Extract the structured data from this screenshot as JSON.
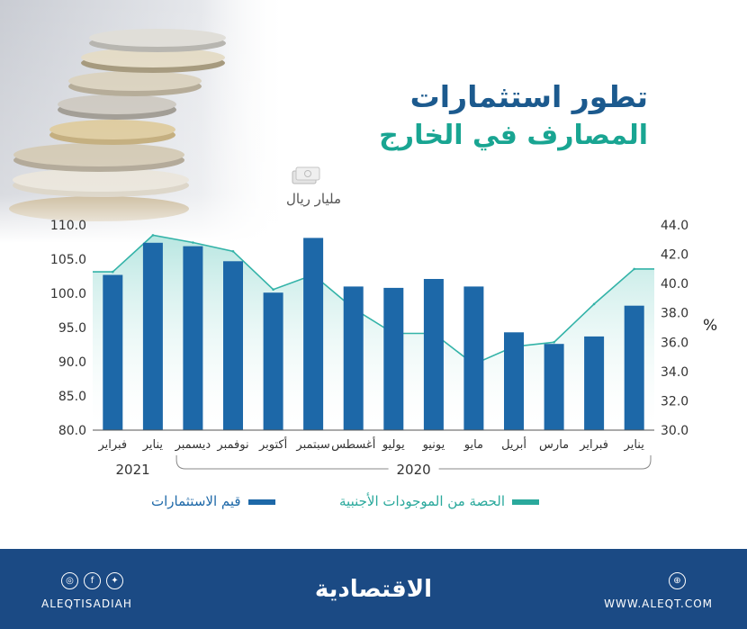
{
  "title_line1": "تطور استثمارات",
  "title_line2": "المصارف في الخارج",
  "unit_label": "مليار ريال",
  "right_axis_unit": "%",
  "chart_data": {
    "type": "bar",
    "categories": [
      "يناير",
      "فبراير",
      "مارس",
      "أبريل",
      "مايو",
      "يونيو",
      "يوليو",
      "أغسطس",
      "سبتمبر",
      "أكتوبر",
      "نوفمبر",
      "ديسمبر",
      "يناير",
      "فبراير"
    ],
    "series": [
      {
        "name": "قيم الاستثمارات",
        "type": "bar",
        "axis": "left",
        "values": [
          98.2,
          93.7,
          92.6,
          94.3,
          101.0,
          102.1,
          100.8,
          101.0,
          108.1,
          100.1,
          104.7,
          106.9,
          107.4,
          102.7
        ]
      },
      {
        "name": "الحصة من الموجودات الأجنبية",
        "type": "area",
        "axis": "right",
        "values": [
          41.0,
          38.6,
          36.0,
          35.7,
          34.5,
          36.6,
          36.6,
          38.3,
          40.6,
          39.6,
          42.2,
          42.8,
          43.3,
          40.8
        ]
      }
    ],
    "y_left": {
      "min": 80.0,
      "max": 110.0,
      "ticks": [
        "80.0",
        "85.0",
        "90.0",
        "95.0",
        "100.0",
        "105.0",
        "110.0"
      ]
    },
    "y_right": {
      "min": 30.0,
      "max": 44.0,
      "ticks": [
        "30.0",
        "32.0",
        "34.0",
        "36.0",
        "38.0",
        "40.0",
        "42.0",
        "44.0"
      ]
    },
    "year_labels": [
      {
        "label": "2020",
        "from": 0,
        "to": 11
      },
      {
        "label": "2021",
        "from": 12,
        "to": 13
      }
    ],
    "colors": {
      "bar": "#1d68a8",
      "area_line": "#33b3a8",
      "area_fill": "#b8e6e1"
    },
    "grid": false
  },
  "legend": {
    "bar_label": "قيم الاستثمارات",
    "area_label": "الحصة من الموجودات الأجنبية"
  },
  "footer": {
    "brand": "الاقتصادية",
    "handle": "ALEQTISADIAH",
    "website": "WWW.ALEQT.COM",
    "bg_color": "#1b4a84"
  }
}
